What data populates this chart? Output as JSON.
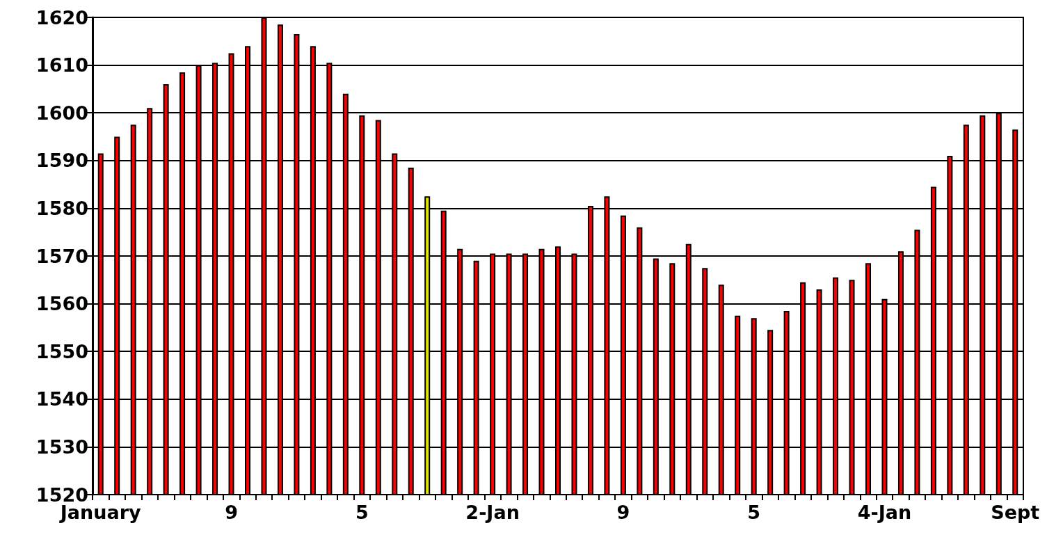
{
  "chart_data": {
    "type": "bar",
    "categories": [
      "January",
      null,
      null,
      null,
      null,
      null,
      null,
      null,
      "9",
      null,
      null,
      null,
      null,
      null,
      null,
      null,
      "5",
      null,
      null,
      null,
      null,
      null,
      null,
      null,
      "2-Jan",
      null,
      null,
      null,
      null,
      null,
      null,
      null,
      "9",
      null,
      null,
      null,
      null,
      null,
      null,
      null,
      "5",
      null,
      null,
      null,
      null,
      null,
      null,
      null,
      "4-Jan",
      null,
      null,
      null,
      null,
      null,
      null,
      null,
      "Sept"
    ],
    "values": [
      1591.5,
      1595,
      1597.5,
      1601,
      1606,
      1608.5,
      1610,
      1610.5,
      1612.5,
      1614,
      1620,
      1618.5,
      1616.5,
      1614,
      1610.5,
      1604,
      1599.5,
      1598.5,
      1591.5,
      1588.5,
      1582.5,
      1579.5,
      1571.5,
      1569,
      1570.5,
      1570.5,
      1570.5,
      1571.5,
      1572,
      1570.5,
      1580.5,
      1582.5,
      1578.5,
      1576,
      1569.5,
      1568.5,
      1572.5,
      1567.5,
      1564,
      1557.5,
      1557,
      1554.5,
      1558.5,
      1564.5,
      1563,
      1565.5,
      1565,
      1568.5,
      1561,
      1571,
      1575.5,
      1584.5,
      1591,
      1597.5,
      1599.5,
      1600,
      1596.5
    ],
    "colors": [
      "#ff0000",
      "#ff0000",
      "#ff0000",
      "#ff0000",
      "#ff0000",
      "#ff0000",
      "#ff0000",
      "#ff0000",
      "#ff0000",
      "#ff0000",
      "#ff0000",
      "#ff0000",
      "#ff0000",
      "#ff0000",
      "#ff0000",
      "#ff0000",
      "#ff0000",
      "#ff0000",
      "#ff0000",
      "#ff0000",
      "#e6e600",
      "#ff0000",
      "#ff0000",
      "#ff0000",
      "#ff0000",
      "#ff0000",
      "#ff0000",
      "#ff0000",
      "#ff0000",
      "#ff0000",
      "#ff0000",
      "#ff0000",
      "#ff0000",
      "#ff0000",
      "#ff0000",
      "#ff0000",
      "#ff0000",
      "#ff0000",
      "#ff0000",
      "#ff0000",
      "#ff0000",
      "#ff0000",
      "#ff0000",
      "#ff0000",
      "#ff0000",
      "#ff0000",
      "#ff0000",
      "#ff0000",
      "#ff0000",
      "#ff0000",
      "#ff0000",
      "#ff0000",
      "#ff0000",
      "#ff0000",
      "#ff0000",
      "#ff0000",
      "#ff0000"
    ],
    "ylim": [
      1520,
      1620
    ],
    "yticks": [
      1520,
      1530,
      1540,
      1550,
      1560,
      1570,
      1580,
      1590,
      1600,
      1610,
      1620
    ],
    "grid": "y"
  }
}
